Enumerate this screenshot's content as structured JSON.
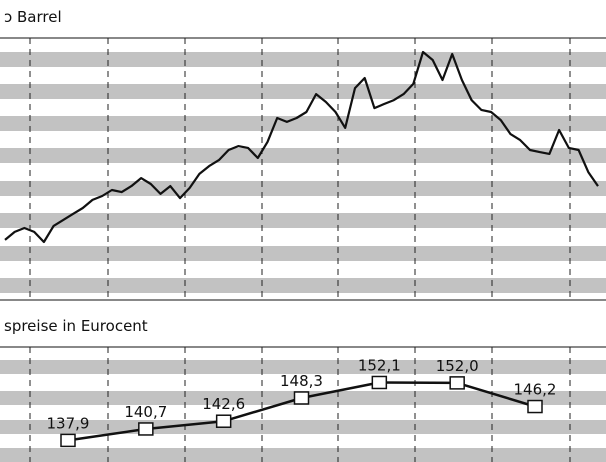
{
  "chart_data": [
    {
      "type": "line",
      "title": "ɔ Barrel",
      "color": "#111111",
      "ylim": [
        0,
        100
      ],
      "values": [
        23.1,
        26.2,
        27.7,
        26.2,
        22.3,
        28.5,
        30.8,
        33.1,
        35.4,
        38.5,
        40,
        42.3,
        41.5,
        43.8,
        46.9,
        44.6,
        40.8,
        43.8,
        39.2,
        43.1,
        48.5,
        51.5,
        53.8,
        57.7,
        59.2,
        58.5,
        54.6,
        60.8,
        70,
        68.5,
        70,
        72.3,
        79.2,
        76.2,
        72.3,
        66.2,
        81.5,
        85.4,
        73.8,
        75.4,
        76.9,
        79.2,
        83.1,
        95.4,
        92.3,
        84.6,
        94.6,
        84.6,
        76.9,
        73.1,
        72.3,
        69.2,
        63.8,
        61.5,
        57.7,
        56.9,
        56.2,
        65.4,
        58.5,
        57.7,
        49.2,
        43.8
      ]
    },
    {
      "type": "line",
      "title": "spreise in Eurocent",
      "color": "#111111",
      "ylim": [
        132.6,
        160.8
      ],
      "values": [
        137.9,
        140.7,
        142.6,
        148.3,
        152.1,
        152.0,
        146.2
      ],
      "value_labels": [
        "137,9",
        "140,7",
        "142,6",
        "148,3",
        "152,1",
        "152,0",
        "146,2"
      ]
    }
  ]
}
